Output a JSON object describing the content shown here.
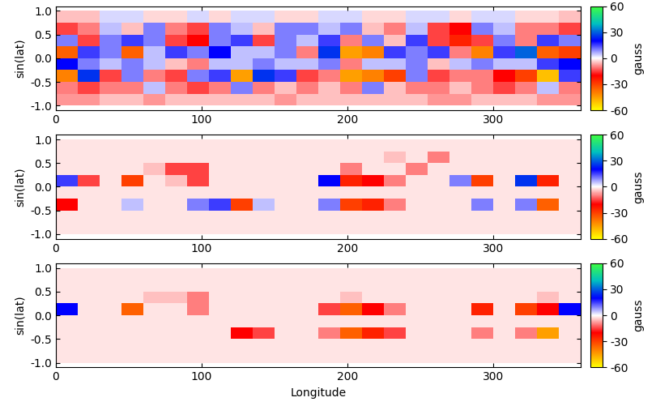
{
  "chart_data": [
    {
      "type": "heatmap",
      "ylabel": "sin(lat)",
      "x_edges": [
        0,
        15,
        30,
        45,
        60,
        75,
        90,
        105,
        120,
        135,
        150,
        165,
        180,
        195,
        210,
        225,
        240,
        255,
        270,
        285,
        300,
        315,
        330,
        345,
        360
      ],
      "y_edges": [
        -1.0,
        -0.75,
        -0.5,
        -0.25,
        0.0,
        0.25,
        0.5,
        0.75,
        1.0
      ],
      "cells": [
        [
          -8,
          -8,
          -5,
          -5,
          -8,
          -5,
          -5,
          -5,
          -5,
          -5,
          -8,
          -5,
          -5,
          -5,
          -5,
          -5,
          -5,
          -8,
          -8,
          -5,
          -5,
          -5,
          -8,
          -8
        ],
        [
          -10,
          -15,
          -10,
          -10,
          5,
          -10,
          -15,
          -10,
          10,
          -10,
          -5,
          -10,
          -5,
          -10,
          10,
          -5,
          -10,
          -10,
          -5,
          -10,
          -15,
          -10,
          5,
          -10
        ],
        [
          -40,
          25,
          -15,
          10,
          -10,
          -15,
          10,
          15,
          -45,
          25,
          15,
          -15,
          -10,
          -45,
          -40,
          -30,
          10,
          -15,
          -10,
          -10,
          -20,
          -30,
          -50,
          15
        ],
        [
          20,
          10,
          5,
          10,
          5,
          -5,
          -10,
          5,
          5,
          10,
          5,
          5,
          10,
          -10,
          5,
          5,
          10,
          -5,
          5,
          10,
          5,
          5,
          15,
          20
        ],
        [
          -35,
          15,
          10,
          -35,
          5,
          15,
          10,
          20,
          5,
          5,
          10,
          -10,
          25,
          -45,
          -40,
          15,
          10,
          15,
          -10,
          -40,
          15,
          30,
          -35,
          -30
        ],
        [
          10,
          -15,
          10,
          15,
          10,
          -15,
          -20,
          10,
          15,
          -15,
          10,
          5,
          15,
          -10,
          10,
          -5,
          15,
          -15,
          -25,
          -15,
          10,
          -10,
          15,
          10
        ],
        [
          -15,
          -10,
          5,
          -5,
          10,
          -10,
          -15,
          10,
          5,
          -5,
          10,
          10,
          5,
          10,
          -5,
          -10,
          5,
          -15,
          -20,
          10,
          5,
          -10,
          -10,
          -15
        ],
        [
          -5,
          -5,
          3,
          3,
          -3,
          -3,
          3,
          -3,
          3,
          3,
          -3,
          -3,
          3,
          3,
          -3,
          -3,
          3,
          3,
          -3,
          3,
          3,
          -3,
          -3,
          -5
        ]
      ],
      "xlim": [
        0,
        360
      ],
      "xticks": [
        0,
        100,
        200,
        300
      ],
      "ylim": [
        -1.1,
        1.1
      ],
      "yticks": [
        -1.0,
        -0.5,
        0.0,
        0.5,
        1.0
      ],
      "colorbar": {
        "label": "gauss",
        "range": [
          -60,
          60
        ],
        "ticks": [
          -60,
          -30,
          0,
          30,
          60
        ]
      }
    },
    {
      "type": "heatmap",
      "ylabel": "sin(lat)",
      "x_edges": [
        0,
        15,
        30,
        45,
        60,
        75,
        90,
        105,
        120,
        135,
        150,
        165,
        180,
        195,
        210,
        225,
        240,
        255,
        270,
        285,
        300,
        315,
        330,
        345,
        360
      ],
      "y_edges": [
        -1.0,
        -0.75,
        -0.5,
        -0.25,
        0.0,
        0.25,
        0.5,
        0.75,
        1.0
      ],
      "cells": [
        [
          -2,
          -2,
          -2,
          -2,
          -2,
          -2,
          -2,
          -2,
          -2,
          -2,
          -2,
          -2,
          -2,
          -2,
          -2,
          -2,
          -2,
          -2,
          -2,
          -2,
          -2,
          -2,
          -2,
          -2
        ],
        [
          -2,
          -2,
          -2,
          -2,
          -2,
          -2,
          -2,
          -2,
          -2,
          -2,
          -2,
          -2,
          -2,
          -2,
          -2,
          -2,
          -2,
          -2,
          -2,
          -2,
          -2,
          -2,
          -2,
          -2
        ],
        [
          -20,
          -2,
          -2,
          5,
          -2,
          -2,
          10,
          15,
          -30,
          5,
          -2,
          -2,
          10,
          -30,
          -25,
          -10,
          -2,
          -2,
          -2,
          10,
          -2,
          10,
          -35,
          -2
        ],
        [
          -2,
          -2,
          -2,
          -2,
          -2,
          -2,
          -2,
          -2,
          -2,
          -2,
          -2,
          -2,
          -2,
          -2,
          -2,
          -2,
          -2,
          -2,
          -2,
          -2,
          -2,
          -2,
          -2,
          -2
        ],
        [
          15,
          -15,
          -2,
          -30,
          -2,
          -5,
          -15,
          -2,
          -2,
          -2,
          -2,
          -2,
          20,
          -25,
          -20,
          -10,
          -2,
          -2,
          10,
          -30,
          -2,
          25,
          -25,
          -2
        ],
        [
          -2,
          -2,
          -2,
          -2,
          -5,
          -15,
          -15,
          -2,
          -2,
          -2,
          -2,
          -2,
          -2,
          -10,
          -2,
          -2,
          -10,
          -2,
          -2,
          -2,
          -2,
          -2,
          -2,
          -2
        ],
        [
          -2,
          -2,
          -2,
          -2,
          -2,
          -2,
          -2,
          -2,
          -2,
          -2,
          -2,
          -2,
          -2,
          -2,
          -2,
          -5,
          -2,
          -10,
          -2,
          -2,
          -2,
          -2,
          -2,
          -2
        ],
        [
          -2,
          -2,
          -2,
          -2,
          -2,
          -2,
          -2,
          -2,
          -2,
          -2,
          -2,
          -2,
          -2,
          -2,
          -2,
          -2,
          -2,
          -2,
          -2,
          -2,
          -2,
          -2,
          -2,
          -2
        ]
      ],
      "xlim": [
        0,
        360
      ],
      "xticks": [
        0,
        100,
        200,
        300
      ],
      "ylim": [
        -1.1,
        1.1
      ],
      "yticks": [
        -1.0,
        -0.5,
        0.0,
        0.5,
        1.0
      ],
      "colorbar": {
        "label": "gauss",
        "range": [
          -60,
          60
        ],
        "ticks": [
          -60,
          -30,
          0,
          30,
          60
        ]
      }
    },
    {
      "type": "heatmap",
      "ylabel": "sin(lat)",
      "xlabel": "Longitude",
      "x_edges": [
        0,
        15,
        30,
        45,
        60,
        75,
        90,
        105,
        120,
        135,
        150,
        165,
        180,
        195,
        210,
        225,
        240,
        255,
        270,
        285,
        300,
        315,
        330,
        345,
        360
      ],
      "y_edges": [
        -1.0,
        -0.75,
        -0.5,
        -0.25,
        0.0,
        0.25,
        0.5,
        0.75,
        1.0
      ],
      "cells": [
        [
          -2,
          -2,
          -2,
          -2,
          -2,
          -2,
          -2,
          -2,
          -2,
          -2,
          -2,
          -2,
          -2,
          -2,
          -2,
          -2,
          -2,
          -2,
          -2,
          -2,
          -2,
          -2,
          -2,
          -2
        ],
        [
          -2,
          -2,
          -2,
          -2,
          -2,
          -2,
          -2,
          -2,
          -2,
          -2,
          -2,
          -2,
          -2,
          -2,
          -2,
          -2,
          -2,
          -2,
          -2,
          -2,
          -2,
          -2,
          -2,
          -2
        ],
        [
          -2,
          -2,
          -2,
          -2,
          -2,
          -2,
          -2,
          -2,
          -20,
          -15,
          -2,
          -2,
          -10,
          -35,
          -25,
          -15,
          -2,
          -2,
          -2,
          -10,
          -2,
          -10,
          -45,
          -2
        ],
        [
          -2,
          -2,
          -2,
          -2,
          -2,
          -2,
          -2,
          -2,
          -2,
          -2,
          -2,
          -2,
          -2,
          -2,
          -2,
          -2,
          -2,
          -2,
          -2,
          -2,
          -2,
          -2,
          -2,
          -2
        ],
        [
          20,
          -2,
          -2,
          -35,
          -2,
          -2,
          -10,
          -2,
          -2,
          -2,
          -2,
          -2,
          -15,
          -35,
          -20,
          -10,
          -2,
          -2,
          -2,
          -25,
          -2,
          -30,
          -20,
          20
        ],
        [
          -2,
          -2,
          -2,
          -2,
          -5,
          -5,
          -10,
          -2,
          -2,
          -2,
          -2,
          -2,
          -2,
          -5,
          -2,
          -2,
          -2,
          -2,
          -2,
          -2,
          -2,
          -2,
          -5,
          -2
        ],
        [
          -2,
          -2,
          -2,
          -2,
          -2,
          -2,
          -2,
          -2,
          -2,
          -2,
          -2,
          -2,
          -2,
          -2,
          -2,
          -2,
          -2,
          -2,
          -2,
          -2,
          -2,
          -2,
          -2,
          -2
        ],
        [
          -2,
          -2,
          -2,
          -2,
          -2,
          -2,
          -2,
          -2,
          -2,
          -2,
          -2,
          -2,
          -2,
          -2,
          -2,
          -2,
          -2,
          -2,
          -2,
          -2,
          -2,
          -2,
          -2,
          -2
        ]
      ],
      "xlim": [
        0,
        360
      ],
      "xticks": [
        0,
        100,
        200,
        300
      ],
      "ylim": [
        -1.1,
        1.1
      ],
      "yticks": [
        -1.0,
        -0.5,
        0.0,
        0.5,
        1.0
      ],
      "colorbar": {
        "label": "gauss",
        "range": [
          -60,
          60
        ],
        "ticks": [
          -60,
          -30,
          0,
          30,
          60
        ]
      }
    }
  ]
}
